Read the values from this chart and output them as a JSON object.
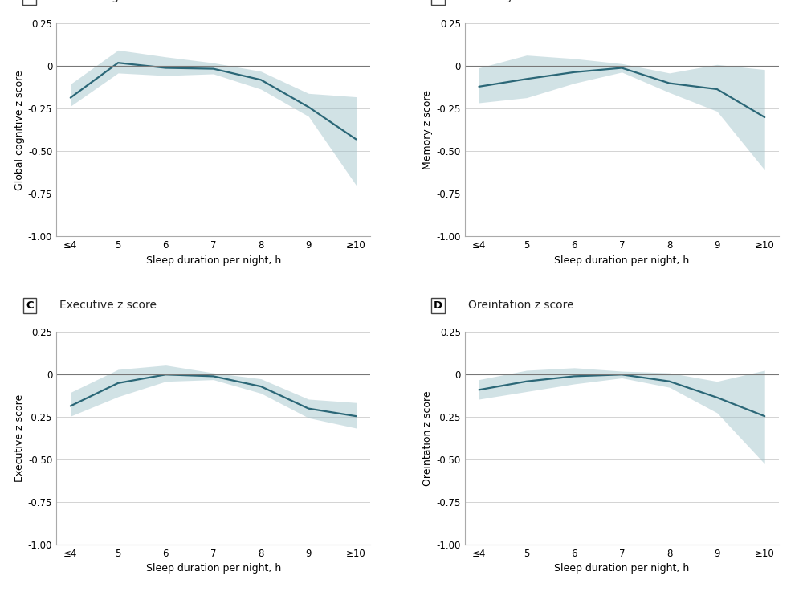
{
  "panels": [
    {
      "label": "A",
      "title": "Global cognitive z score",
      "ylabel": "Global cognitive z score",
      "x": [
        0,
        1,
        2,
        3,
        4,
        5,
        6
      ],
      "y": [
        -0.185,
        0.02,
        -0.01,
        -0.015,
        -0.08,
        -0.24,
        -0.43
      ],
      "y_lower": [
        -0.235,
        -0.04,
        -0.055,
        -0.045,
        -0.135,
        -0.295,
        -0.7
      ],
      "y_upper": [
        -0.105,
        0.095,
        0.055,
        0.02,
        -0.03,
        -0.16,
        -0.18
      ]
    },
    {
      "label": "B",
      "title": "Memory z score",
      "ylabel": "Memory z score",
      "x": [
        0,
        1,
        2,
        3,
        4,
        5,
        6
      ],
      "y": [
        -0.12,
        -0.075,
        -0.035,
        -0.01,
        -0.1,
        -0.135,
        -0.3
      ],
      "y_lower": [
        -0.215,
        -0.185,
        -0.1,
        -0.035,
        -0.155,
        -0.265,
        -0.61
      ],
      "y_upper": [
        -0.01,
        0.065,
        0.045,
        0.015,
        -0.04,
        0.01,
        -0.02
      ]
    },
    {
      "label": "C",
      "title": "Executive z score",
      "ylabel": "Executive z score",
      "x": [
        0,
        1,
        2,
        3,
        4,
        5,
        6
      ],
      "y": [
        -0.185,
        -0.05,
        -0.0,
        -0.01,
        -0.07,
        -0.2,
        -0.245
      ],
      "y_lower": [
        -0.245,
        -0.13,
        -0.04,
        -0.03,
        -0.11,
        -0.255,
        -0.315
      ],
      "y_upper": [
        -0.105,
        0.03,
        0.055,
        0.01,
        -0.025,
        -0.145,
        -0.165
      ]
    },
    {
      "label": "D",
      "title": "Oreintation z score",
      "ylabel": "Oreintation z score",
      "x": [
        0,
        1,
        2,
        3,
        4,
        5,
        6
      ],
      "y": [
        -0.09,
        -0.04,
        -0.01,
        0.0,
        -0.04,
        -0.135,
        -0.245
      ],
      "y_lower": [
        -0.145,
        -0.1,
        -0.055,
        -0.02,
        -0.075,
        -0.225,
        -0.525
      ],
      "y_upper": [
        -0.03,
        0.025,
        0.04,
        0.02,
        0.01,
        -0.04,
        0.025
      ]
    }
  ],
  "x_tick_labels": [
    "≤4",
    "5",
    "6",
    "7",
    "8",
    "9",
    "≥10"
  ],
  "xlabel": "Sleep duration per night, h",
  "ylim": [
    -1.0,
    0.25
  ],
  "yticks": [
    -1.0,
    -0.75,
    -0.5,
    -0.25,
    0,
    0.25
  ],
  "ytick_labels": [
    "-1.00",
    "-0.75",
    "-0.50",
    "-0.25",
    "0",
    "0.25"
  ],
  "line_color": "#2b6777",
  "fill_color": "#9bbfc7",
  "fill_alpha": 0.45,
  "bg_color": "#ffffff",
  "grid_color": "#cccccc",
  "zero_line_color": "#777777",
  "spine_color": "#aaaaaa",
  "tick_fontsize": 8.5,
  "label_fontsize": 9.0,
  "title_fontsize": 10.0
}
